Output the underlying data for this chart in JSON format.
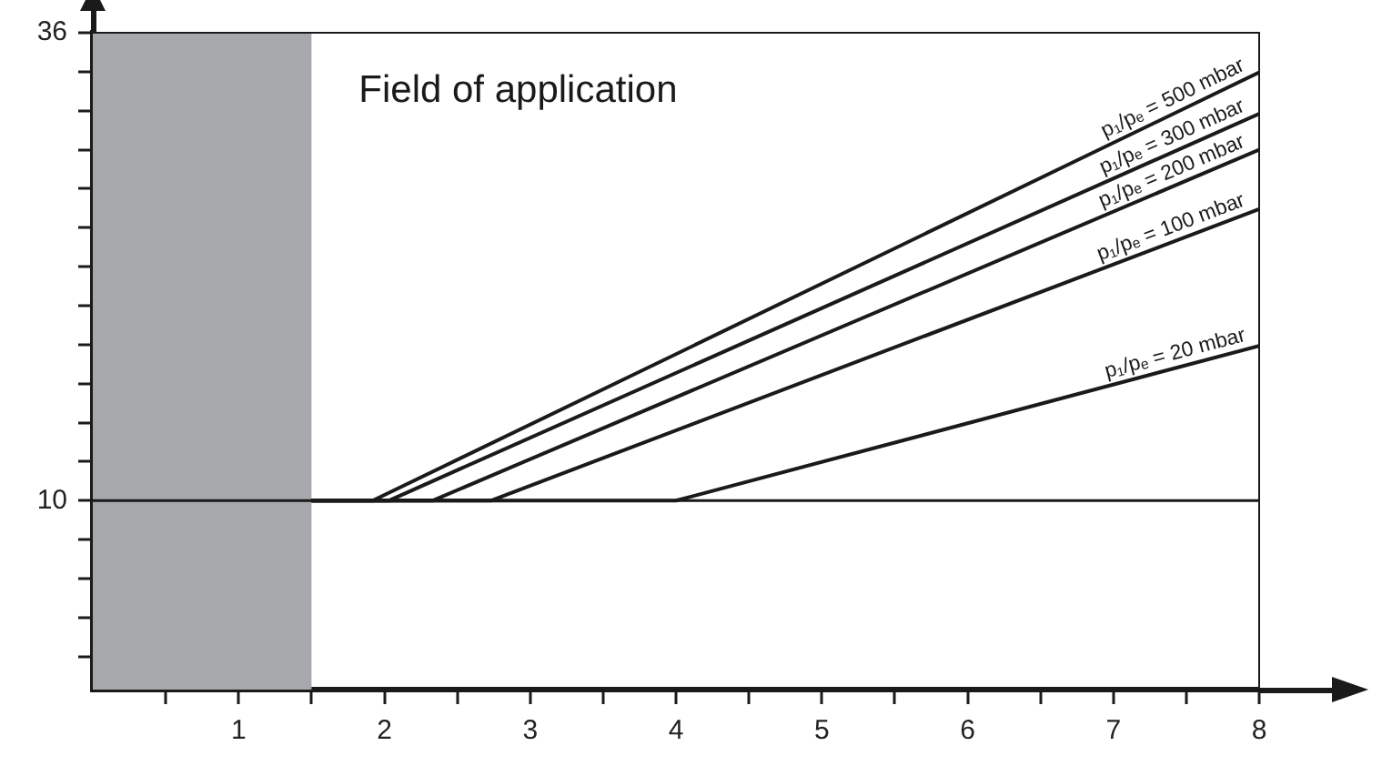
{
  "chart_data": {
    "type": "line",
    "annotations": [
      "Field of application"
    ],
    "xlim": [
      0,
      8
    ],
    "ylim": [
      -0.5,
      36
    ],
    "xticks": [
      {
        "value": 0.5,
        "label": null
      },
      1,
      {
        "value": 1.5,
        "label": null
      },
      2,
      {
        "value": 2.5,
        "label": null
      },
      3,
      {
        "value": 3.5,
        "label": null
      },
      4,
      {
        "value": 4.5,
        "label": null
      },
      5,
      {
        "value": 5.5,
        "label": null
      },
      6,
      {
        "value": 6.5,
        "label": null
      },
      7,
      {
        "value": 7.5,
        "label": null
      },
      8
    ],
    "yticks": [
      {
        "value": 1.33,
        "label": null
      },
      {
        "value": 3.5,
        "label": null
      },
      {
        "value": 5.67,
        "label": null
      },
      {
        "value": 7.83,
        "label": null
      },
      10,
      {
        "value": 12.17,
        "label": null
      },
      {
        "value": 14.33,
        "label": null
      },
      {
        "value": 16.5,
        "label": null
      },
      {
        "value": 18.67,
        "label": null
      },
      {
        "value": 20.83,
        "label": null
      },
      {
        "value": 23,
        "label": null
      },
      {
        "value": 25.17,
        "label": null
      },
      {
        "value": 27.33,
        "label": null
      },
      {
        "value": 29.5,
        "label": null
      },
      {
        "value": 31.67,
        "label": null
      },
      {
        "value": 33.83,
        "label": null
      },
      36
    ],
    "series": [
      {
        "name": "p₁/pₑ = 500 mbar",
        "color": "#1a1a1a",
        "x": [
          1.5,
          1.92,
          8
        ],
        "values": [
          10,
          10,
          33.8
        ]
      },
      {
        "name": "p₁/pₑ = 300 mbar",
        "color": "#1a1a1a",
        "x": [
          1.5,
          2.03,
          8
        ],
        "values": [
          10,
          10,
          31.5
        ]
      },
      {
        "name": "p₁/pₑ = 200 mbar",
        "color": "#1a1a1a",
        "x": [
          1.5,
          2.33,
          8
        ],
        "values": [
          10,
          10,
          29.5
        ]
      },
      {
        "name": "p₁/pₑ = 100 mbar",
        "color": "#1a1a1a",
        "x": [
          1.5,
          2.73,
          8
        ],
        "values": [
          10,
          10,
          26.2
        ]
      },
      {
        "name": "p₁/pₑ = 20 mbar",
        "color": "#1a1a1a",
        "x": [
          1.5,
          4,
          8
        ],
        "values": [
          10,
          10,
          18.6
        ]
      }
    ],
    "bands": [
      {
        "axis": "x",
        "from": 0,
        "to": 1.5,
        "color": "#a7a8ab"
      }
    ],
    "ref_lines": [
      {
        "axis": "y",
        "value": 10,
        "color": "#1a1a1a"
      }
    ],
    "grid": false,
    "legend": false,
    "marker": "none",
    "line_style": "solid"
  }
}
